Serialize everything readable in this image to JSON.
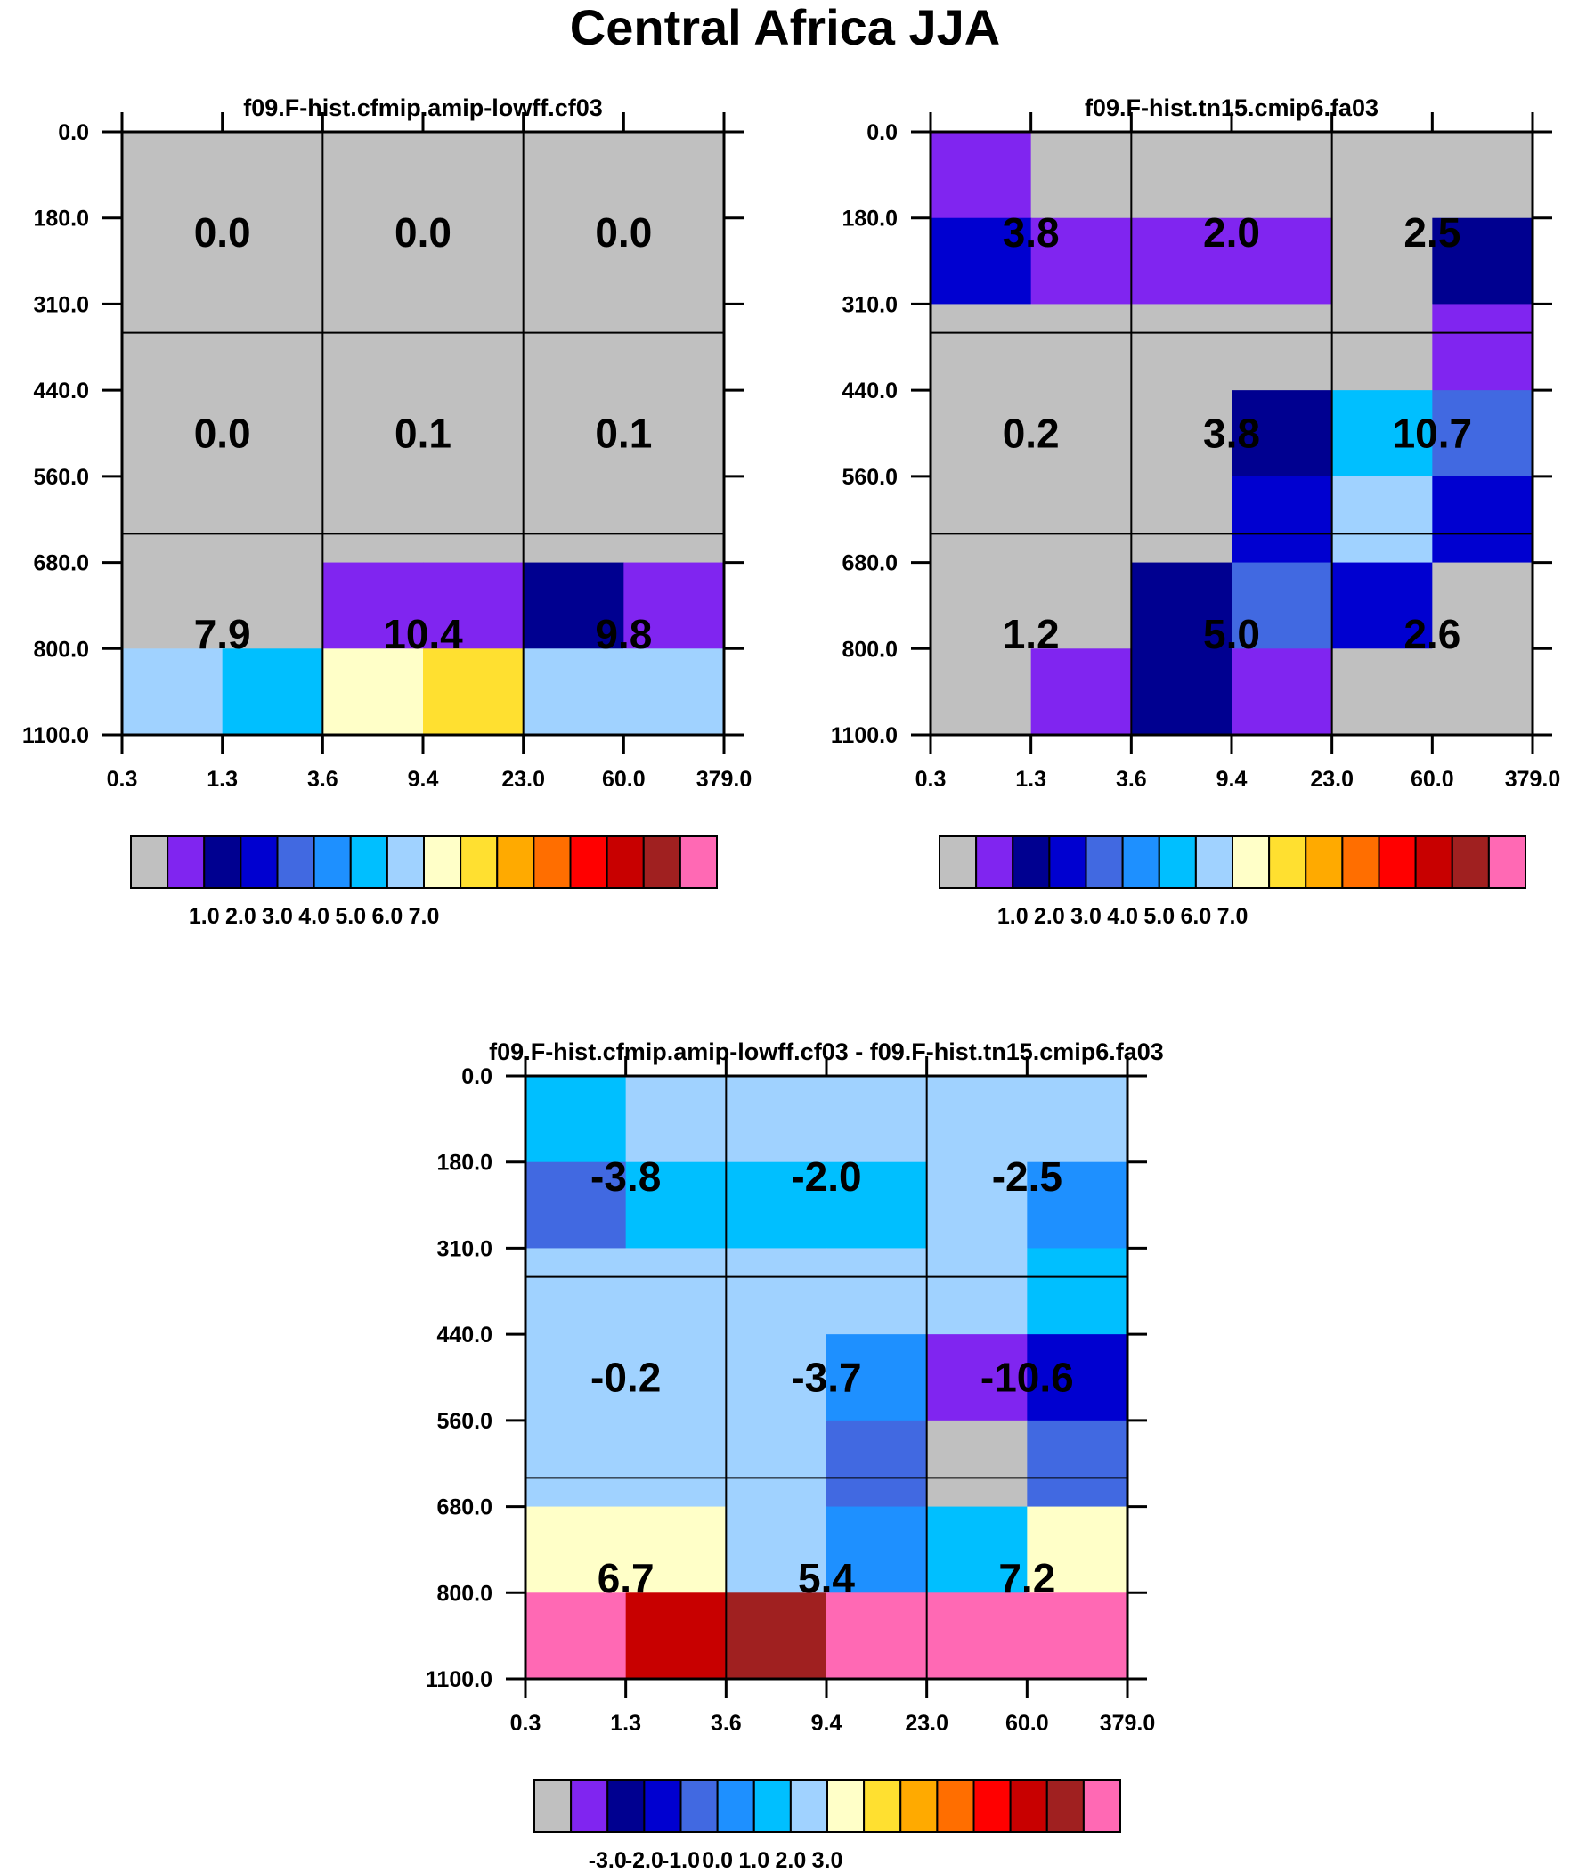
{
  "figure": {
    "title": "Central Africa JJA"
  },
  "palette": [
    "#c0c0c0",
    "#8025f0",
    "#000090",
    "#0000d0",
    "#4169e1",
    "#1e90ff",
    "#00bfff",
    "#a0d2ff",
    "#ffffc8",
    "#ffe030",
    "#ffaa00",
    "#ff6e00",
    "#ff0000",
    "#c80000",
    "#a02020",
    "#ff69b4"
  ],
  "chart_data": [
    {
      "type": "heatmap",
      "title": "f09.F-hist.cfmip.amip-lowff.cf03",
      "x_ticks": [
        "0.3",
        "1.3",
        "3.6",
        "9.4",
        "23.0",
        "60.0",
        "379.0"
      ],
      "y_ticks": [
        "0.0",
        "180.0",
        "310.0",
        "440.0",
        "560.0",
        "680.0",
        "800.0",
        "1100.0"
      ],
      "cell_color_index": [
        [
          0,
          0,
          0,
          0,
          0,
          0
        ],
        [
          0,
          0,
          0,
          0,
          0,
          0
        ],
        [
          0,
          0,
          0,
          0,
          0,
          0
        ],
        [
          0,
          0,
          0,
          0,
          0,
          0
        ],
        [
          0,
          0,
          0,
          0,
          0,
          0
        ],
        [
          0,
          0,
          1,
          1,
          2,
          1
        ],
        [
          7,
          6,
          8,
          9,
          7,
          7
        ]
      ],
      "box_values": [
        [
          "0.0",
          "0.0",
          "0.0"
        ],
        [
          "0.0",
          "0.1",
          "0.1"
        ],
        [
          "7.9",
          "10.4",
          "9.8"
        ]
      ],
      "colorbar_labels": [
        "1.0",
        "2.0",
        "3.0",
        "4.0",
        "5.0",
        "6.0",
        "7.0"
      ]
    },
    {
      "type": "heatmap",
      "title": "f09.F-hist.tn15.cmip6.fa03",
      "x_ticks": [
        "0.3",
        "1.3",
        "3.6",
        "9.4",
        "23.0",
        "60.0",
        "379.0"
      ],
      "y_ticks": [
        "0.0",
        "180.0",
        "310.0",
        "440.0",
        "560.0",
        "680.0",
        "800.0",
        "1100.0"
      ],
      "cell_color_index": [
        [
          1,
          0,
          0,
          0,
          0,
          0
        ],
        [
          3,
          1,
          1,
          1,
          0,
          2
        ],
        [
          0,
          0,
          0,
          0,
          0,
          1
        ],
        [
          0,
          0,
          0,
          2,
          6,
          4
        ],
        [
          0,
          0,
          0,
          3,
          7,
          3
        ],
        [
          0,
          0,
          2,
          4,
          3,
          0
        ],
        [
          0,
          1,
          2,
          1,
          0,
          0
        ]
      ],
      "box_values": [
        [
          "3.8",
          "2.0",
          "2.5"
        ],
        [
          "0.2",
          "3.8",
          "10.7"
        ],
        [
          "1.2",
          "5.0",
          "2.6"
        ]
      ],
      "colorbar_labels": [
        "1.0",
        "2.0",
        "3.0",
        "4.0",
        "5.0",
        "6.0",
        "7.0"
      ]
    },
    {
      "type": "heatmap",
      "title": "f09.F-hist.cfmip.amip-lowff.cf03 - f09.F-hist.tn15.cmip6.fa03",
      "x_ticks": [
        "0.3",
        "1.3",
        "3.6",
        "9.4",
        "23.0",
        "60.0",
        "379.0"
      ],
      "y_ticks": [
        "0.0",
        "180.0",
        "310.0",
        "440.0",
        "560.0",
        "680.0",
        "800.0",
        "1100.0"
      ],
      "cell_color_index": [
        [
          6,
          7,
          7,
          7,
          7,
          7
        ],
        [
          4,
          6,
          6,
          6,
          7,
          5
        ],
        [
          7,
          7,
          7,
          7,
          7,
          6
        ],
        [
          7,
          7,
          7,
          5,
          1,
          3
        ],
        [
          7,
          7,
          7,
          4,
          0,
          4
        ],
        [
          8,
          8,
          7,
          5,
          6,
          8
        ],
        [
          15,
          13,
          14,
          15,
          15,
          15
        ]
      ],
      "box_values": [
        [
          "-3.8",
          "-2.0",
          "-2.5"
        ],
        [
          "-0.2",
          "-3.7",
          "-10.6"
        ],
        [
          "6.7",
          "5.4",
          "7.2"
        ]
      ],
      "colorbar_labels": [
        "-3.0",
        "-2.0",
        "-1.0",
        "0.0",
        "1.0",
        "2.0",
        "3.0"
      ]
    }
  ]
}
